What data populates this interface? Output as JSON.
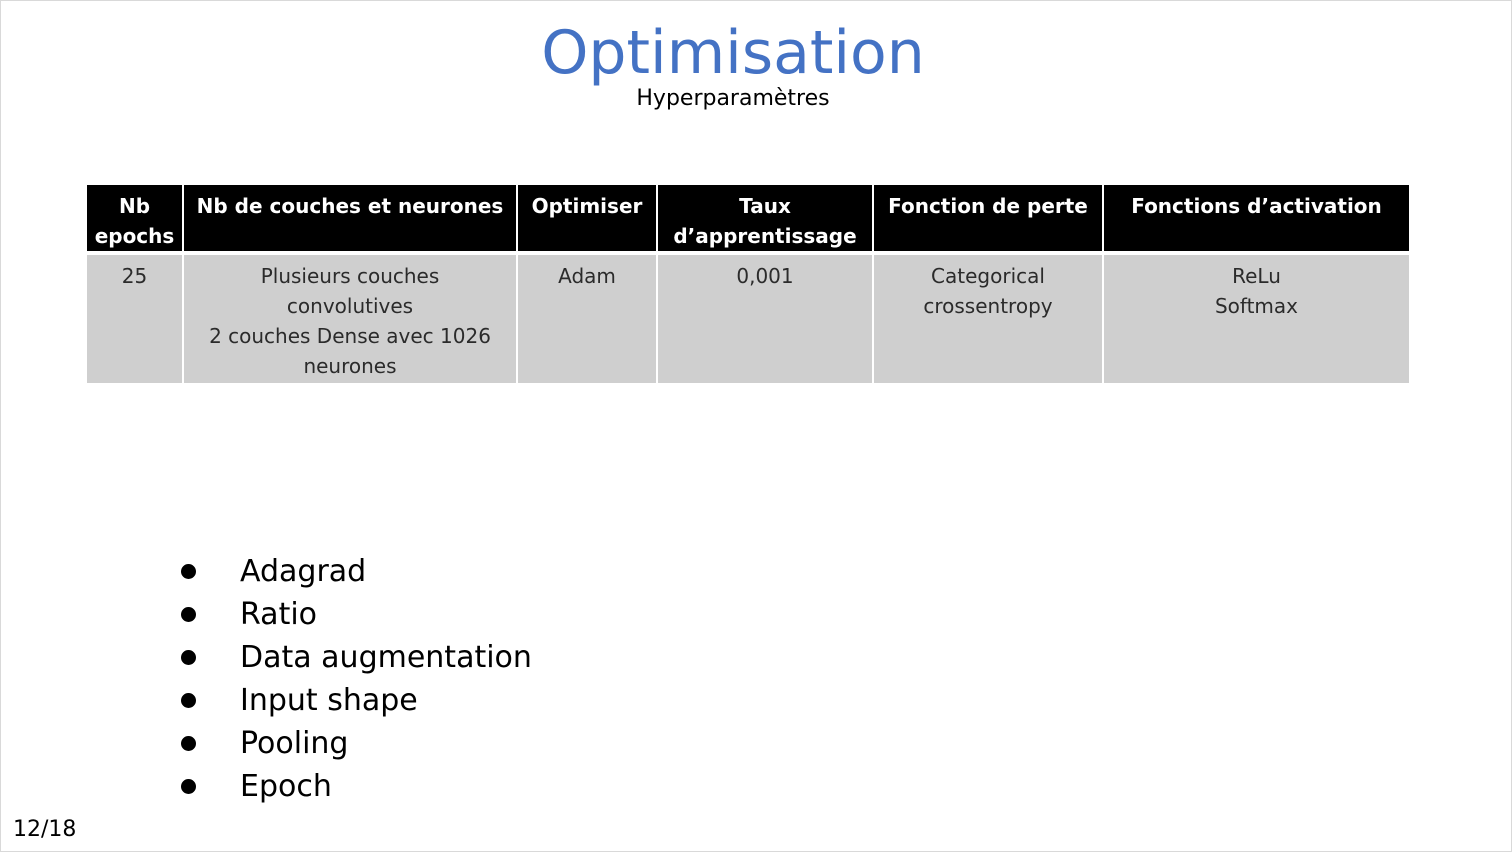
{
  "slide": {
    "title": "Optimisation",
    "subtitle": "Hyperparamètres",
    "page_number": "12/18"
  },
  "colors": {
    "title": "#4472c4",
    "table_header_bg": "#000000",
    "table_body_bg": "#cfcfcf"
  },
  "table": {
    "headers": [
      [
        "Nb",
        "epochs"
      ],
      [
        "Nb de couches et neurones"
      ],
      [
        "Optimiser"
      ],
      [
        "Taux",
        "d’apprentissage"
      ],
      [
        "Fonction de perte"
      ],
      [
        "Fonctions d’activation"
      ]
    ],
    "row": [
      [
        "25"
      ],
      [
        "Plusieurs couches",
        "convolutives",
        "2 couches Dense avec 1026",
        "neurones"
      ],
      [
        "Adam"
      ],
      [
        "0,001"
      ],
      [
        "Categorical",
        "crossentropy"
      ],
      [
        "ReLu",
        "Softmax"
      ]
    ]
  },
  "bullets": [
    "Adagrad",
    "Ratio",
    "Data augmentation",
    "Input shape",
    "Pooling",
    "Epoch"
  ]
}
